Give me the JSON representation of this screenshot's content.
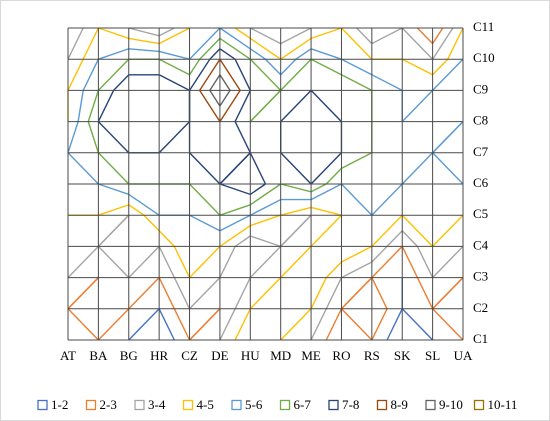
{
  "chart_data": {
    "type": "contour",
    "categories": [
      "AT",
      "BA",
      "BG",
      "HR",
      "CZ",
      "DE",
      "HU",
      "MD",
      "ME",
      "RO",
      "RS",
      "SK",
      "SL",
      "UA"
    ],
    "series": [
      {
        "name": "C1",
        "values": [
          2,
          3,
          2,
          1,
          3,
          4,
          6,
          5,
          4,
          2,
          3,
          1,
          2,
          3
        ]
      },
      {
        "name": "C2",
        "values": [
          3,
          4,
          3,
          2,
          4,
          3,
          5,
          6,
          5,
          3,
          4,
          2,
          3,
          4
        ]
      },
      {
        "name": "C3",
        "values": [
          4,
          3,
          4,
          3,
          5,
          4,
          4,
          5,
          6,
          4,
          3,
          2,
          4,
          3
        ]
      },
      {
        "name": "C4",
        "values": [
          5,
          4,
          5,
          4,
          6,
          5,
          3,
          4,
          5,
          6,
          5,
          3,
          5,
          4
        ]
      },
      {
        "name": "C5",
        "values": [
          5,
          5,
          4,
          6,
          6,
          7,
          6,
          5,
          4,
          5,
          6,
          5,
          6,
          5
        ]
      },
      {
        "name": "C6",
        "values": [
          6,
          6,
          7,
          7,
          7,
          8,
          9,
          7,
          8,
          6,
          7,
          6,
          6,
          6
        ]
      },
      {
        "name": "C7",
        "values": [
          6,
          7,
          8,
          8,
          8,
          9,
          8,
          8,
          9,
          8,
          7,
          7,
          6,
          7
        ]
      },
      {
        "name": "C8",
        "values": [
          5,
          8,
          9,
          9,
          8,
          9,
          7,
          8,
          9,
          8,
          7,
          6,
          7,
          6
        ]
      },
      {
        "name": "C9",
        "values": [
          5,
          7,
          9,
          9,
          8,
          11,
          8,
          7,
          8,
          8,
          7,
          6,
          6,
          7
        ]
      },
      {
        "name": "C10",
        "values": [
          4,
          6,
          7,
          7,
          6,
          9,
          7,
          5,
          7,
          6,
          5,
          5,
          4,
          6
        ]
      },
      {
        "name": "C11",
        "values": [
          3,
          5,
          4,
          3,
          5,
          6,
          4,
          3,
          4,
          5,
          3,
          4,
          2,
          5
        ]
      }
    ],
    "bands": [
      {
        "label": "1-2",
        "min": 1,
        "max": 2,
        "color": "#4472c4"
      },
      {
        "label": "2-3",
        "min": 2,
        "max": 3,
        "color": "#ed7d31"
      },
      {
        "label": "3-4",
        "min": 3,
        "max": 4,
        "color": "#a5a5a5"
      },
      {
        "label": "4-5",
        "min": 4,
        "max": 5,
        "color": "#ffc000"
      },
      {
        "label": "5-6",
        "min": 5,
        "max": 6,
        "color": "#5b9bd5"
      },
      {
        "label": "6-7",
        "min": 6,
        "max": 7,
        "color": "#70ad47"
      },
      {
        "label": "7-8",
        "min": 7,
        "max": 8,
        "color": "#264478"
      },
      {
        "label": "8-9",
        "min": 8,
        "max": 9,
        "color": "#9e480e"
      },
      {
        "label": "9-10",
        "min": 9,
        "max": 10,
        "color": "#636363"
      },
      {
        "label": "10-11",
        "min": 10,
        "max": 11,
        "color": "#997300"
      }
    ]
  }
}
